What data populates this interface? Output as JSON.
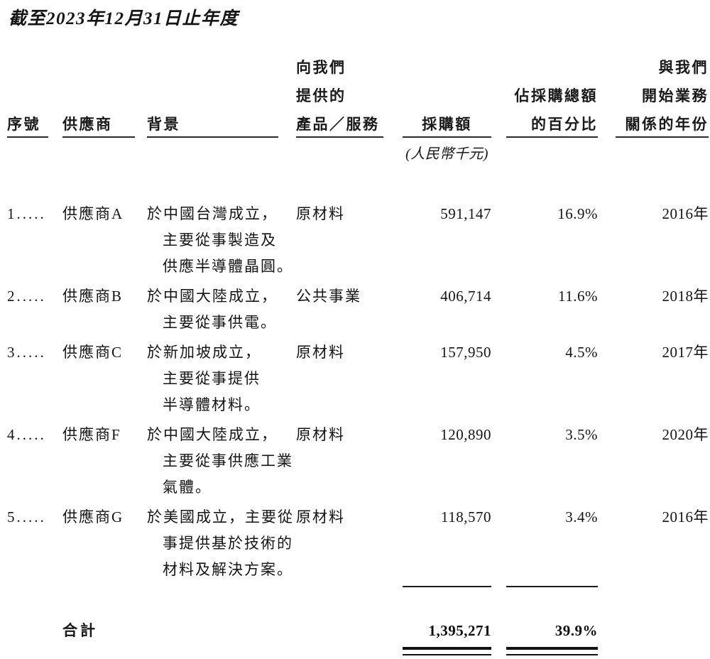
{
  "title": "截至2023年12月31日止年度",
  "table": {
    "headers": {
      "col1": "序號",
      "col2": "供應商",
      "col3": "背景",
      "col4_lines": [
        "向我們",
        "提供的",
        "產品／服務"
      ],
      "col5": "採購額",
      "col5_unit": "(人民幣千元)",
      "col6_lines": [
        "佔採購總額",
        "的百分比"
      ],
      "col7_lines": [
        "與我們",
        "開始業務",
        "關係的年份"
      ]
    },
    "rows": [
      {
        "index": "1.....",
        "supplier": "供應商A",
        "background": [
          "於中國台灣成立，",
          "主要從事製造及",
          "供應半導體晶圓。"
        ],
        "product": "原材料",
        "amount": "591,147",
        "percent": "16.9%",
        "year": "2016年"
      },
      {
        "index": "2.....",
        "supplier": "供應商B",
        "background": [
          "於中國大陸成立，",
          "主要從事供電。"
        ],
        "product": "公共事業",
        "amount": "406,714",
        "percent": "11.6%",
        "year": "2018年"
      },
      {
        "index": "3.....",
        "supplier": "供應商C",
        "background": [
          "於新加坡成立，",
          "主要從事提供",
          "半導體材料。"
        ],
        "product": "原材料",
        "amount": "157,950",
        "percent": "4.5%",
        "year": "2017年"
      },
      {
        "index": "4.....",
        "supplier": "供應商F",
        "background": [
          "於中國大陸成立，",
          "主要從事供應工業",
          "氣體。"
        ],
        "product": "原材料",
        "amount": "120,890",
        "percent": "3.5%",
        "year": "2020年"
      },
      {
        "index": "5.....",
        "supplier": "供應商G",
        "background": [
          "於美國成立，主要從",
          "事提供基於技術的",
          "材料及解決方案。"
        ],
        "product": "原材料",
        "amount": "118,570",
        "percent": "3.4%",
        "year": "2016年"
      }
    ],
    "total": {
      "label": "合計",
      "amount": "1,395,271",
      "percent": "39.9%"
    }
  }
}
